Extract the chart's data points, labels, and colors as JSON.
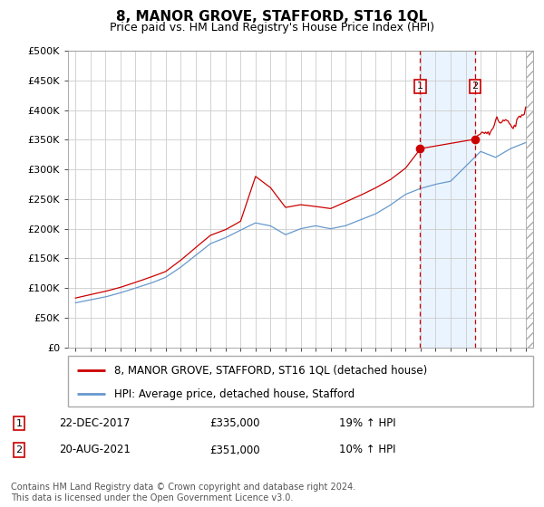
{
  "title": "8, MANOR GROVE, STAFFORD, ST16 1QL",
  "subtitle": "Price paid vs. HM Land Registry's House Price Index (HPI)",
  "legend_line1": "8, MANOR GROVE, STAFFORD, ST16 1QL (detached house)",
  "legend_line2": "HPI: Average price, detached house, Stafford",
  "footnote": "Contains HM Land Registry data © Crown copyright and database right 2024.\nThis data is licensed under the Open Government Licence v3.0.",
  "sale1_date": "22-DEC-2017",
  "sale1_price": "£335,000",
  "sale1_hpi": "19% ↑ HPI",
  "sale2_date": "20-AUG-2021",
  "sale2_price": "£351,000",
  "sale2_hpi": "10% ↑ HPI",
  "sale1_x": 2017.97,
  "sale1_y": 335000,
  "sale2_x": 2021.64,
  "sale2_y": 351000,
  "hpi_color": "#6699cc",
  "price_color": "#cc0000",
  "marker_color": "#cc0000",
  "sale_line_color": "#cc0000",
  "bg_shade_color": "#ddeeff",
  "ylim": [
    0,
    500000
  ],
  "xlim_start": 1994.5,
  "xlim_end": 2025.5,
  "yticks": [
    0,
    50000,
    100000,
    150000,
    200000,
    250000,
    300000,
    350000,
    400000,
    450000,
    500000
  ],
  "hatch_start": 2025.0,
  "hatch_color": "#cccccc"
}
